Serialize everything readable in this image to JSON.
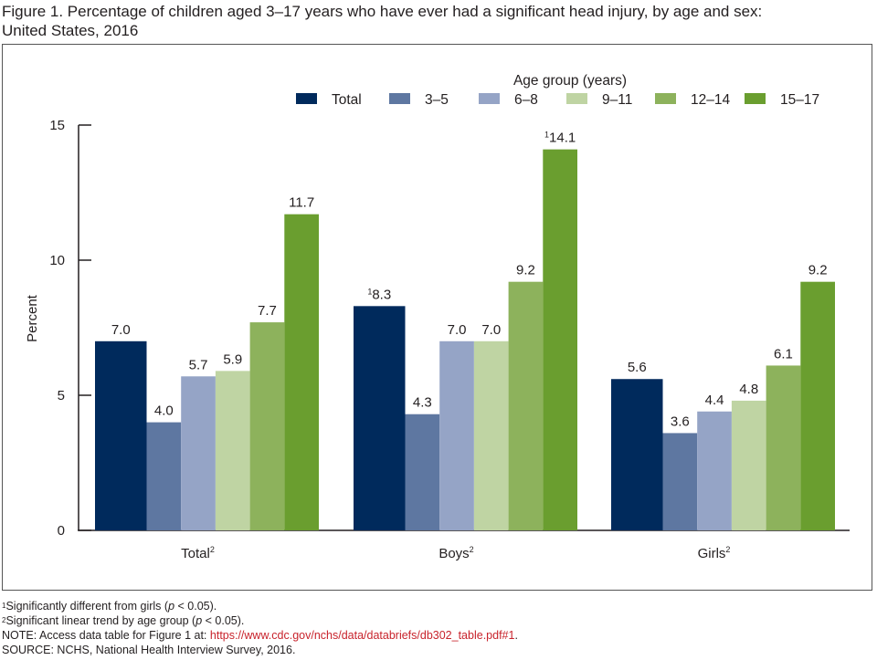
{
  "title_line1": "Figure 1. Percentage of children aged 3–17 years who have ever had a significant head injury, by age and sex:",
  "title_line2": "United States, 2016",
  "chart_data": {
    "type": "bar",
    "title": "Percentage of children aged 3–17 years who have ever had a significant head injury, by age and sex: United States, 2016",
    "xlabel": "",
    "ylabel": "Percent",
    "ylim": [
      0,
      15
    ],
    "yticks": [
      0,
      5,
      10,
      15
    ],
    "grid": false,
    "legend_title": "Age group (years)",
    "legend_position": "top-right",
    "categories": [
      {
        "label": "Total",
        "sup": "2"
      },
      {
        "label": "Boys",
        "sup": "2"
      },
      {
        "label": "Girls",
        "sup": "2"
      }
    ],
    "series": [
      {
        "name": "Total",
        "color": "#002a5c",
        "values": [
          7.0,
          8.3,
          5.6
        ],
        "labels": [
          "7.0",
          "8.3",
          "5.6"
        ],
        "label_sups": [
          "",
          "1",
          ""
        ]
      },
      {
        "name": "3–5",
        "color": "#5e77a1",
        "values": [
          4.0,
          4.3,
          3.6
        ],
        "labels": [
          "4.0",
          "4.3",
          "3.6"
        ],
        "label_sups": [
          "",
          "",
          ""
        ]
      },
      {
        "name": "6–8",
        "color": "#95a4c6",
        "values": [
          5.7,
          7.0,
          4.4
        ],
        "labels": [
          "5.7",
          "7.0",
          "4.4"
        ],
        "label_sups": [
          "",
          "",
          ""
        ]
      },
      {
        "name": "9–11",
        "color": "#bfd4a3",
        "values": [
          5.9,
          7.0,
          4.8
        ],
        "labels": [
          "5.9",
          "7.0",
          "4.8"
        ],
        "label_sups": [
          "",
          "",
          ""
        ]
      },
      {
        "name": "12–14",
        "color": "#8db25c",
        "values": [
          7.7,
          9.2,
          6.1
        ],
        "labels": [
          "7.7",
          "9.2",
          "6.1"
        ],
        "label_sups": [
          "",
          "",
          ""
        ]
      },
      {
        "name": "15–17",
        "color": "#6a9e2f",
        "values": [
          11.7,
          14.1,
          9.2
        ],
        "labels": [
          "11.7",
          "14.1",
          "9.2"
        ],
        "label_sups": [
          "",
          "1",
          ""
        ]
      }
    ]
  },
  "footnotes": {
    "note1_sup": "1",
    "note1_text_a": "Significantly different from girls (",
    "note1_p": "p",
    "note1_text_b": " < 0.05).",
    "note2_sup": "2",
    "note2_text_a": "Significant linear trend by age group (",
    "note2_p": "p",
    "note2_text_b": " < 0.05).",
    "note_prefix": "NOTE: Access data table for Figure 1 at: ",
    "note_link": "https://www.cdc.gov/nchs/data/databriefs/db302_table.pdf#1",
    "note_suffix": ".",
    "source": "SOURCE: NCHS, National Health Interview Survey, 2016."
  }
}
